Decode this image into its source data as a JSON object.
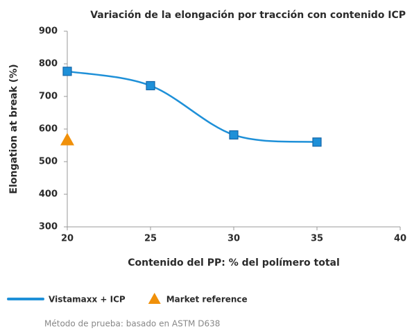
{
  "chart_data": {
    "type": "line",
    "title": "Variación de la elongación por tracción con contenido ICP",
    "x_label": "Contenido del PP: % del polímero total",
    "y_label": "Elongation at break (%)",
    "x": [
      20,
      25,
      30,
      35
    ],
    "series": [
      {
        "name": "Vistamaxx + ICP",
        "color": "#1e90d8",
        "marker": "square",
        "line": true,
        "values": [
          777,
          733,
          582,
          560
        ]
      },
      {
        "name": "Market reference",
        "color": "#f0900a",
        "marker": "triangle",
        "line": false,
        "values": [
          567,
          null,
          null,
          null
        ]
      }
    ],
    "xlim": [
      20,
      40
    ],
    "xticks": [
      20,
      25,
      30,
      35,
      40
    ],
    "ylim": [
      300,
      900
    ],
    "yticks": [
      300,
      400,
      500,
      600,
      700,
      800,
      900
    ],
    "grid": false,
    "footnote": "Método de prueba: basado en ASTM D638"
  }
}
